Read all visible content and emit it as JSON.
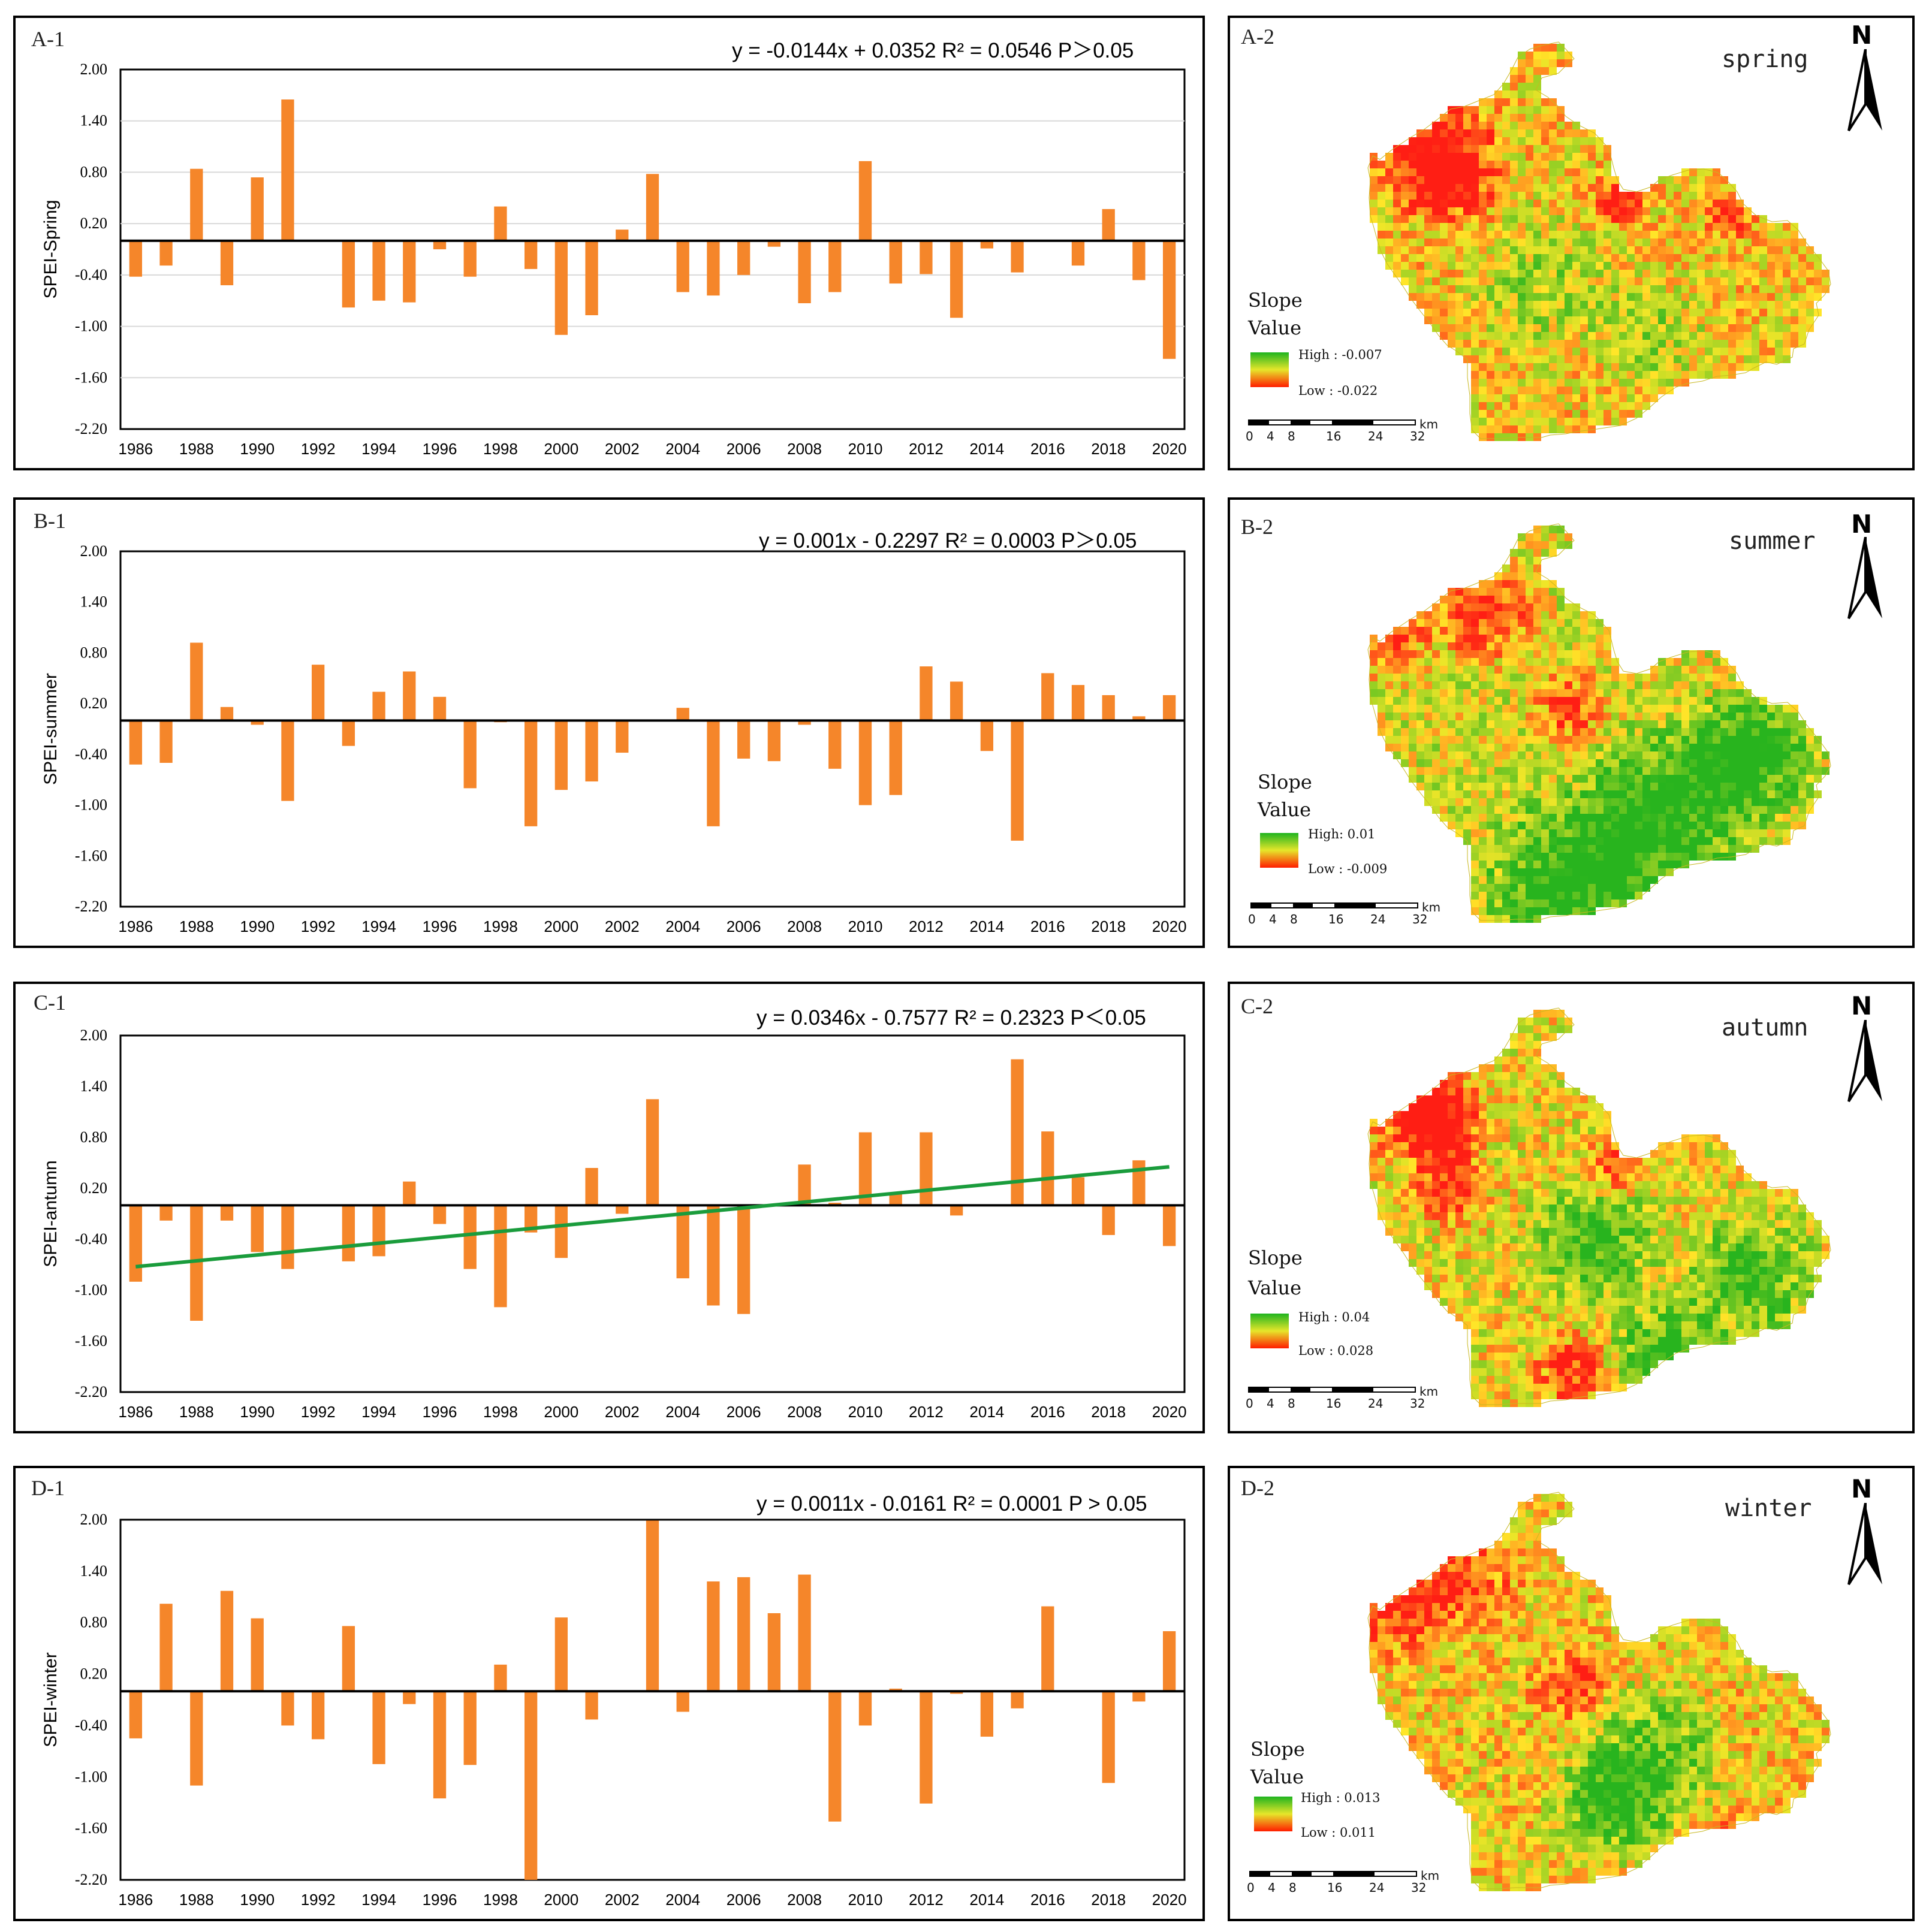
{
  "year_labels": [
    "1986",
    "1988",
    "1990",
    "1992",
    "1994",
    "1996",
    "1998",
    "2000",
    "2002",
    "2004",
    "2006",
    "2008",
    "2010",
    "2012",
    "2014",
    "2016",
    "2018",
    "2020"
  ],
  "y_ticks": [
    "2.00",
    "1.40",
    "0.80",
    "0.20",
    "-0.40",
    "-1.00",
    "-1.60",
    "-2.20"
  ],
  "colors": {
    "bar": "#f5862a",
    "trend": "#1a9c3c",
    "axis": "#000000",
    "grid": "#d9d9d9"
  },
  "charts": [
    {
      "id": "A-1",
      "label": "A-1",
      "equation": "y = -0.0144x + 0.0352  R² = 0.0546  P＞0.05",
      "ylabel": "SPEI-Spring",
      "gridlines": true,
      "trend": null,
      "chart_data": {
        "type": "bar",
        "title": "",
        "xlabel": "",
        "ylabel": "SPEI-Spring",
        "ylim": [
          -2.2,
          2.0
        ],
        "categories": [
          "1986",
          "1987",
          "1988",
          "1989",
          "1990",
          "1991",
          "1992",
          "1993",
          "1994",
          "1995",
          "1996",
          "1997",
          "1998",
          "1999",
          "2000",
          "2001",
          "2002",
          "2003",
          "2004",
          "2005",
          "2006",
          "2007",
          "2008",
          "2009",
          "2010",
          "2011",
          "2012",
          "2013",
          "2014",
          "2015",
          "2016",
          "2017",
          "2018",
          "2019",
          "2020"
        ],
        "values": [
          -0.42,
          -0.29,
          0.84,
          -0.52,
          0.74,
          1.65,
          0.0,
          -0.78,
          -0.7,
          -0.72,
          -0.1,
          -0.42,
          0.4,
          -0.33,
          -1.1,
          -0.87,
          0.13,
          0.78,
          -0.6,
          -0.64,
          -0.4,
          -0.07,
          -0.73,
          -0.6,
          0.93,
          -0.5,
          -0.39,
          -0.9,
          -0.09,
          -0.37,
          0.0,
          -0.29,
          0.37,
          -0.46,
          -1.38
        ]
      }
    },
    {
      "id": "B-1",
      "label": "B-1",
      "equation": "y = 0.001x - 0.2297  R² = 0.0003  P＞0.05",
      "ylabel": "SPEI-summer",
      "gridlines": false,
      "trend": null,
      "chart_data": {
        "type": "bar",
        "title": "",
        "xlabel": "",
        "ylabel": "SPEI-summer",
        "ylim": [
          -2.2,
          2.0
        ],
        "categories": [
          "1986",
          "1987",
          "1988",
          "1989",
          "1990",
          "1991",
          "1992",
          "1993",
          "1994",
          "1995",
          "1996",
          "1997",
          "1998",
          "1999",
          "2000",
          "2001",
          "2002",
          "2003",
          "2004",
          "2005",
          "2006",
          "2007",
          "2008",
          "2009",
          "2010",
          "2011",
          "2012",
          "2013",
          "2014",
          "2015",
          "2016",
          "2017",
          "2018",
          "2019",
          "2020"
        ],
        "values": [
          -0.52,
          -0.5,
          0.92,
          0.16,
          -0.05,
          -0.95,
          0.66,
          -0.3,
          0.34,
          0.58,
          0.28,
          -0.8,
          -0.02,
          -1.25,
          -0.82,
          -0.72,
          -0.38,
          0.0,
          0.15,
          -1.25,
          -0.45,
          -0.48,
          -0.05,
          -0.57,
          -1.0,
          -0.88,
          0.64,
          0.46,
          -0.36,
          -1.42,
          0.56,
          0.42,
          0.3,
          0.05,
          0.3
        ]
      }
    },
    {
      "id": "C-1",
      "label": "C-1",
      "equation": "y = 0.0346x - 0.7577 R² = 0.2323  P＜0.05",
      "ylabel": "SPEI-antumn",
      "gridlines": false,
      "trend": {
        "intercept": -0.7577,
        "slope": 0.0346
      },
      "chart_data": {
        "type": "bar",
        "title": "",
        "xlabel": "",
        "ylabel": "SPEI-antumn",
        "ylim": [
          -2.2,
          2.0
        ],
        "categories": [
          "1986",
          "1987",
          "1988",
          "1989",
          "1990",
          "1991",
          "1992",
          "1993",
          "1994",
          "1995",
          "1996",
          "1997",
          "1998",
          "1999",
          "2000",
          "2001",
          "2002",
          "2003",
          "2004",
          "2005",
          "2006",
          "2007",
          "2008",
          "2009",
          "2010",
          "2011",
          "2012",
          "2013",
          "2014",
          "2015",
          "2016",
          "2017",
          "2018",
          "2019",
          "2020"
        ],
        "values": [
          -0.9,
          -0.18,
          -1.36,
          -0.18,
          -0.55,
          -0.75,
          0.0,
          -0.66,
          -0.6,
          0.28,
          -0.22,
          -0.75,
          -1.2,
          -0.32,
          -0.62,
          0.44,
          -0.1,
          1.25,
          -0.86,
          -1.18,
          -1.28,
          0.0,
          0.48,
          0.03,
          0.86,
          0.13,
          0.86,
          -0.12,
          0.0,
          1.72,
          0.87,
          0.33,
          -0.35,
          0.53,
          -0.48
        ]
      }
    },
    {
      "id": "D-1",
      "label": "D-1",
      "equation": "y = 0.0011x - 0.0161 R² = 0.0001 P > 0.05",
      "ylabel": "SPEI-winter",
      "gridlines": false,
      "trend": null,
      "chart_data": {
        "type": "bar",
        "title": "",
        "xlabel": "",
        "ylabel": "SPEI-winter",
        "ylim": [
          -2.2,
          2.0
        ],
        "categories": [
          "1986",
          "1987",
          "1988",
          "1989",
          "1990",
          "1991",
          "1992",
          "1993",
          "1994",
          "1995",
          "1996",
          "1997",
          "1998",
          "1999",
          "2000",
          "2001",
          "2002",
          "2003",
          "2004",
          "2005",
          "2006",
          "2007",
          "2008",
          "2009",
          "2010",
          "2011",
          "2012",
          "2013",
          "2014",
          "2015",
          "2016",
          "2017",
          "2018",
          "2019",
          "2020"
        ],
        "values": [
          -0.55,
          1.02,
          -1.1,
          1.17,
          0.85,
          -0.4,
          -0.56,
          0.76,
          -0.85,
          -0.15,
          -1.25,
          -0.86,
          0.31,
          -2.2,
          0.86,
          -0.33,
          0.0,
          1.99,
          -0.24,
          1.28,
          1.33,
          0.91,
          1.36,
          -1.52,
          -0.4,
          0.03,
          -1.31,
          -0.03,
          -0.53,
          -0.2,
          0.99,
          0.0,
          -1.07,
          -0.12,
          0.7
        ]
      }
    }
  ],
  "maps": [
    {
      "id": "A-2",
      "label": "A-2",
      "season": "spring",
      "legend_title_1": "Slope",
      "legend_title_2": "Value",
      "high": "High : -0.007",
      "low": "Low : -0.022",
      "scheme": "spring"
    },
    {
      "id": "B-2",
      "label": "B-2",
      "season": "summer",
      "legend_title_1": "Slope",
      "legend_title_2": "Value",
      "high": "High: 0.01",
      "low": "Low : -0.009",
      "scheme": "summer"
    },
    {
      "id": "C-2",
      "label": "C-2",
      "season": "autumn",
      "legend_title_1": "Slope",
      "legend_title_2": "Value",
      "high": "High : 0.04",
      "low": "Low : 0.028",
      "scheme": "autumn"
    },
    {
      "id": "D-2",
      "label": "D-2",
      "season": "winter",
      "legend_title_1": "Slope",
      "legend_title_2": "Value",
      "high": "High : 0.013",
      "low": "Low : 0.011",
      "scheme": "winter"
    }
  ],
  "north_label": "N",
  "scale_ticks": [
    "0",
    "4",
    "8",
    "16",
    "24",
    "32"
  ],
  "scale_unit": "km"
}
